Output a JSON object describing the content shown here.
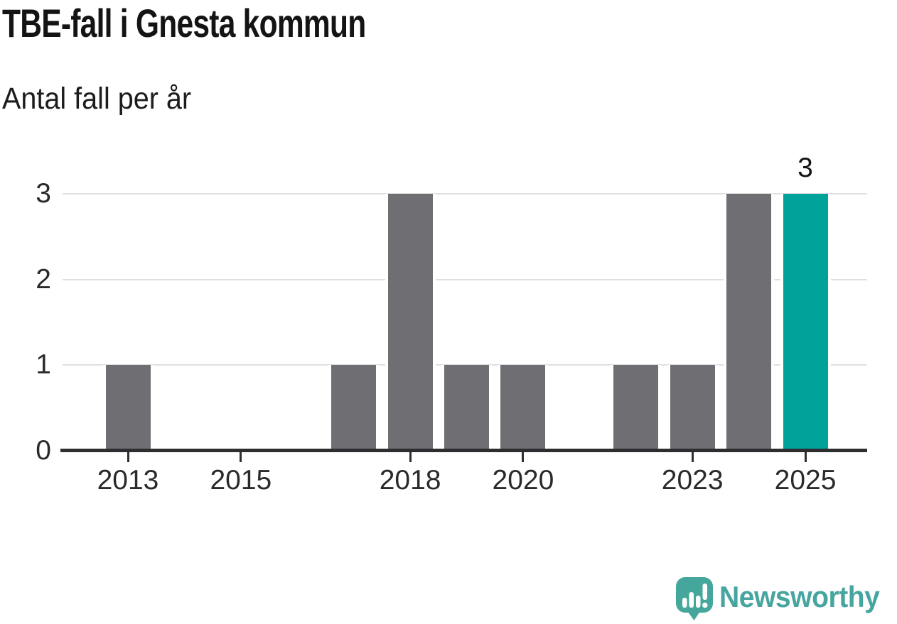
{
  "header": {
    "title": "TBE-fall i Gnesta kommun",
    "subtitle": "Antal fall per år"
  },
  "chart_data": {
    "type": "bar",
    "title": "TBE-fall i Gnesta kommun",
    "subtitle": "Antal fall per år",
    "categories": [
      "2013",
      "2014",
      "2015",
      "2016",
      "2017",
      "2018",
      "2019",
      "2020",
      "2021",
      "2022",
      "2023",
      "2024",
      "2025"
    ],
    "values": [
      1,
      0,
      0,
      0,
      1,
      3,
      1,
      1,
      0,
      1,
      1,
      3,
      3
    ],
    "highlight_category": "2025",
    "data_labels": [
      {
        "category": "2025",
        "text": "3"
      }
    ],
    "x_tick_labels": [
      "2013",
      "2015",
      "2018",
      "2020",
      "2023",
      "2025"
    ],
    "y_ticks": [
      "0",
      "1",
      "2",
      "3"
    ],
    "ylim": [
      0,
      3
    ],
    "xlabel": "",
    "ylabel": "",
    "grid": "horizontal",
    "legend": "none",
    "colors": {
      "bar": "#6e6e73",
      "highlight": "#00a299",
      "gridline": "#e0e0e0",
      "axis": "#2e2e31",
      "tick_label": "#2a2a2a",
      "data_label": "#141414"
    }
  },
  "branding": {
    "logo_text": "Newsworthy",
    "text_color": "#47a5a0",
    "icon_color": "#45a79b",
    "icon": "newsworthy-speech-bubble-chart-icon"
  }
}
